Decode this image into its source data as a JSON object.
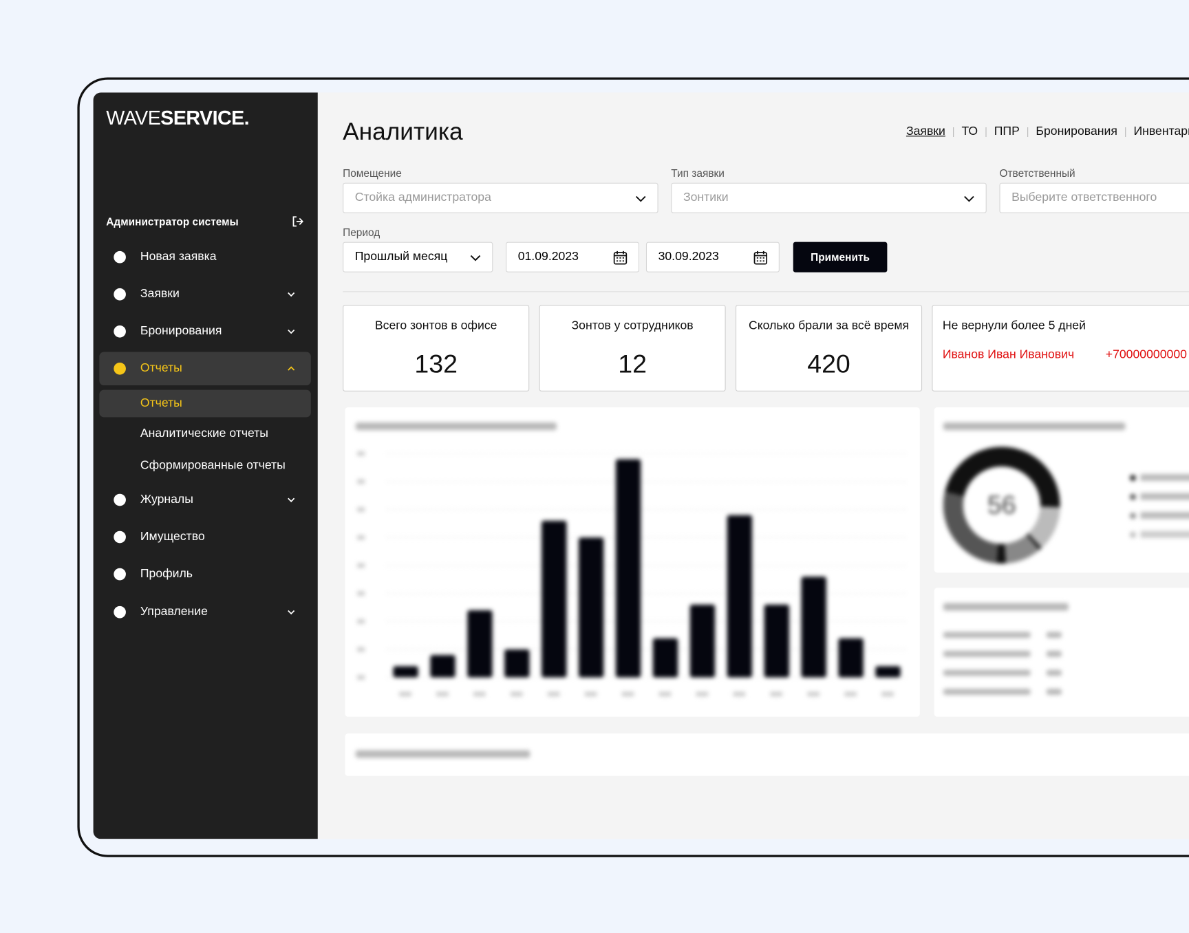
{
  "logo": {
    "light": "WAVE",
    "bold": "SERVICE."
  },
  "sidebar": {
    "user": "Администратор системы",
    "menu": [
      "Новая заявка",
      "Заявки",
      "Бронирования",
      "Отчеты"
    ],
    "submenu": [
      "Отчеты",
      "Аналитические отчеты",
      "Сформированные отчеты"
    ],
    "menu_after": [
      "Журналы",
      "Имущество",
      "Профиль",
      "Управление"
    ]
  },
  "header": {
    "title": "Аналитика",
    "tabs": [
      "Заявки",
      "ТО",
      "ППР",
      "Бронирования",
      "Инвентаризация"
    ]
  },
  "filters": {
    "room": {
      "label": "Помещение",
      "placeholder": "Стойка администратора"
    },
    "type": {
      "label": "Тип заявки",
      "placeholder": "Зонтики"
    },
    "owner": {
      "label": "Ответственный",
      "placeholder": "Выберите ответственного"
    },
    "period": {
      "label": "Период",
      "value": "Прошлый месяц",
      "from": "01.09.2023",
      "to": "30.09.2023"
    },
    "apply": "Применить"
  },
  "cards": [
    {
      "title": "Всего зонтов в офисе",
      "value": 132
    },
    {
      "title": "Зонтов у сотрудников",
      "value": 12
    },
    {
      "title": "Сколько брали за всё время",
      "value": 420
    },
    {
      "title": "Не вернули более 5 дней",
      "person": "Иванов Иван Иванович",
      "phone": "+70000000000"
    }
  ],
  "blurred_chart": {
    "type": "bar",
    "ylim": [
      0,
      40
    ],
    "values": [
      2,
      4,
      12,
      5,
      28,
      25,
      39,
      7,
      13,
      29,
      13,
      18,
      7,
      2
    ]
  },
  "donut": {
    "center": "56"
  }
}
